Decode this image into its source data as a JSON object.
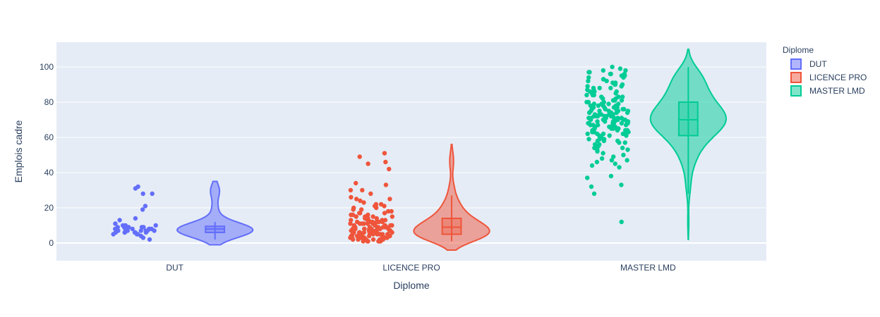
{
  "chart_data": {
    "type": "violin",
    "xlabel": "Diplome",
    "ylabel": "Emplois cadre",
    "categories": [
      "DUT",
      "LICENCE PRO",
      "MASTER LMD"
    ],
    "ylim": [
      -10,
      114
    ],
    "yticks": [
      0,
      20,
      40,
      60,
      80,
      100
    ],
    "grid": true,
    "legend": {
      "title": "Diplome",
      "placement": "top-right",
      "entries": [
        "DUT",
        "LICENCE PRO",
        "MASTER LMD"
      ]
    },
    "points_shown": "all",
    "series": [
      {
        "name": "DUT",
        "color": "#636efa",
        "box": {
          "q1": 6,
          "median": 8,
          "q3": 9.5,
          "whisker_low": 2,
          "whisker_high": 12
        },
        "violin_range": [
          -1,
          35
        ],
        "points": [
          32,
          31,
          28,
          28,
          21,
          19,
          14,
          13,
          11,
          10,
          10,
          10,
          9,
          9,
          9,
          9,
          9,
          8,
          8,
          8,
          8,
          8,
          8,
          8,
          7,
          7,
          7,
          7,
          7,
          7,
          6,
          6,
          6,
          6,
          6,
          6,
          5,
          5,
          5,
          4,
          3,
          2
        ]
      },
      {
        "name": "LICENCE PRO",
        "color": "#ef553b",
        "box": {
          "q1": 5,
          "median": 9,
          "q3": 14,
          "whisker_low": 1,
          "whisker_high": 27
        },
        "violin_range": [
          -4,
          56
        ],
        "points": [
          51,
          49,
          46,
          45,
          42,
          34,
          33,
          30,
          30,
          28,
          26,
          25,
          25,
          24,
          23,
          22,
          22,
          21,
          21,
          21,
          20,
          20,
          19,
          19,
          18,
          18,
          17,
          17,
          17,
          16,
          16,
          16,
          15,
          15,
          15,
          15,
          14,
          14,
          14,
          14,
          13,
          13,
          13,
          13,
          13,
          12,
          12,
          12,
          12,
          12,
          12,
          11,
          11,
          11,
          11,
          11,
          11,
          10,
          10,
          10,
          10,
          10,
          10,
          10,
          9,
          9,
          9,
          9,
          9,
          9,
          9,
          9,
          8,
          8,
          8,
          8,
          8,
          8,
          8,
          8,
          8,
          7,
          7,
          7,
          7,
          7,
          7,
          7,
          7,
          7,
          6,
          6,
          6,
          6,
          6,
          6,
          6,
          6,
          6,
          6,
          5,
          5,
          5,
          5,
          5,
          5,
          5,
          5,
          5,
          5,
          4,
          4,
          4,
          4,
          4,
          4,
          4,
          4,
          4,
          3,
          3,
          3,
          3,
          3,
          3,
          3,
          3,
          2,
          2,
          2,
          2,
          2,
          2,
          2,
          1,
          1,
          1,
          1,
          1,
          1
        ]
      },
      {
        "name": "MASTER LMD",
        "color": "#00cc96",
        "box": {
          "q1": 61,
          "median": 70,
          "q3": 80,
          "whisker_low": 28,
          "whisker_high": 100
        },
        "violin_range": [
          2,
          110
        ],
        "points": [
          100,
          99,
          98,
          98,
          97,
          97,
          96,
          96,
          96,
          95,
          95,
          95,
          94,
          94,
          93,
          93,
          92,
          92,
          91,
          91,
          90,
          90,
          90,
          89,
          89,
          88,
          88,
          88,
          87,
          87,
          86,
          86,
          86,
          85,
          85,
          85,
          84,
          84,
          84,
          83,
          83,
          83,
          82,
          82,
          82,
          81,
          81,
          81,
          80,
          80,
          80,
          80,
          79,
          79,
          79,
          79,
          78,
          78,
          78,
          78,
          77,
          77,
          77,
          77,
          76,
          76,
          76,
          76,
          76,
          75,
          75,
          75,
          75,
          75,
          74,
          74,
          74,
          74,
          74,
          73,
          73,
          73,
          73,
          73,
          72,
          72,
          72,
          72,
          72,
          72,
          71,
          71,
          71,
          71,
          71,
          71,
          70,
          70,
          70,
          70,
          70,
          70,
          70,
          69,
          69,
          69,
          69,
          69,
          69,
          68,
          68,
          68,
          68,
          68,
          68,
          67,
          67,
          67,
          67,
          67,
          66,
          66,
          66,
          66,
          66,
          65,
          65,
          65,
          65,
          65,
          64,
          64,
          64,
          64,
          63,
          63,
          63,
          63,
          62,
          62,
          62,
          62,
          61,
          61,
          61,
          60,
          60,
          60,
          59,
          59,
          59,
          58,
          58,
          58,
          57,
          57,
          56,
          56,
          55,
          55,
          54,
          54,
          53,
          53,
          52,
          51,
          50,
          49,
          48,
          47,
          47,
          46,
          45,
          44,
          43,
          38,
          37,
          33,
          32,
          28,
          12
        ]
      }
    ]
  }
}
